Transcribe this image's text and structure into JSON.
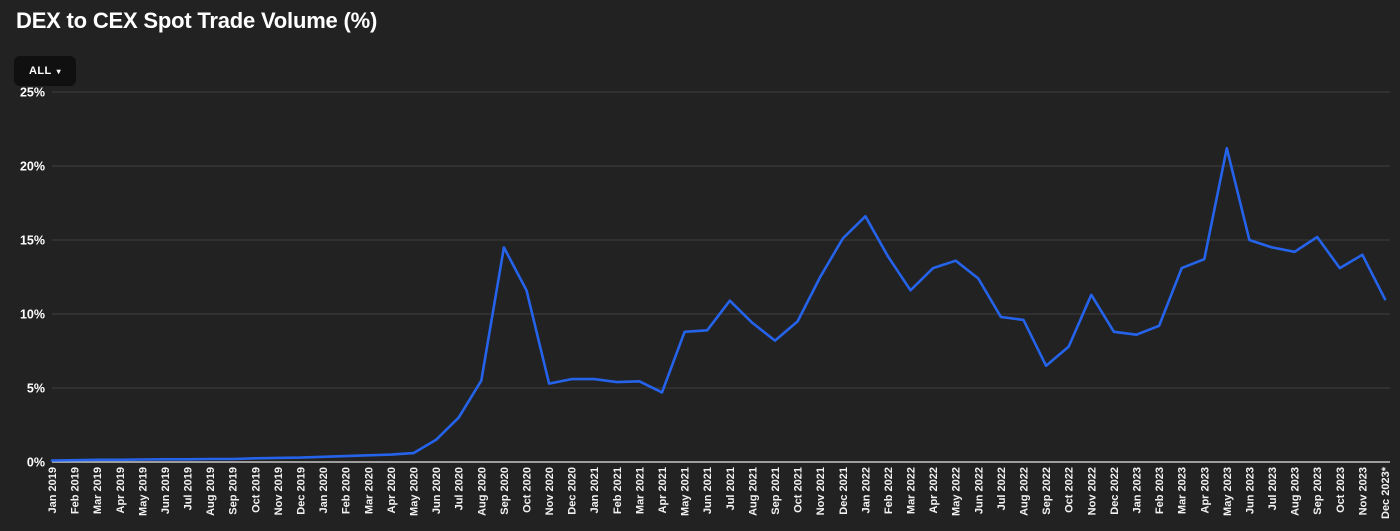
{
  "header": {
    "title": "DEX to CEX Spot Trade Volume (%)"
  },
  "filter": {
    "label": "ALL",
    "caret": "▾"
  },
  "chart_data": {
    "type": "line",
    "title": "DEX to CEX Spot Trade Volume (%)",
    "xlabel": "",
    "ylabel": "",
    "ylim": [
      0,
      25
    ],
    "y_ticks": [
      0,
      5,
      10,
      15,
      20,
      25
    ],
    "y_tick_suffix": "%",
    "grid": true,
    "legend": false,
    "line_color": "#2563eb",
    "grid_color": "#3e3e3e",
    "axis_line_color": "#c6c6c6",
    "label_color": "#ffffff",
    "x_labels": [
      "Jan 2019",
      "Feb 2019",
      "Mar 2019",
      "Apr 2019",
      "May 2019",
      "Jun 2019",
      "Jul 2019",
      "Aug 2019",
      "Sep 2019",
      "Oct 2019",
      "Nov 2019",
      "Dec 2019",
      "Jan 2020",
      "Feb 2020",
      "Mar 2020",
      "Apr 2020",
      "May 2020",
      "Jun 2020",
      "Jul 2020",
      "Aug 2020",
      "Sep 2020",
      "Oct 2020",
      "Nov 2020",
      "Dec 2020",
      "Jan 2021",
      "Feb 2021",
      "Mar 2021",
      "Apr 2021",
      "May 2021",
      "Jun 2021",
      "Jul 2021",
      "Aug 2021",
      "Sep 2021",
      "Oct 2021",
      "Nov 2021",
      "Dec 2021",
      "Jan 2022",
      "Feb 2022",
      "Mar 2022",
      "Apr 2022",
      "May 2022",
      "Jun 2022",
      "Jul 2022",
      "Aug 2022",
      "Sep 2022",
      "Oct 2022",
      "Nov 2022",
      "Dec 2022",
      "Jan 2023",
      "Feb 2023",
      "Mar 2023",
      "Apr 2023",
      "May 2023",
      "Jun 2023",
      "Jul 2023",
      "Aug 2023",
      "Sep 2023",
      "Oct 2023",
      "Nov 2023",
      "Dec 2023*"
    ],
    "values": [
      0.1,
      0.12,
      0.15,
      0.15,
      0.17,
      0.18,
      0.18,
      0.2,
      0.2,
      0.25,
      0.28,
      0.3,
      0.35,
      0.4,
      0.45,
      0.5,
      0.6,
      1.5,
      3.0,
      5.5,
      14.5,
      11.6,
      5.3,
      5.6,
      5.6,
      5.4,
      5.45,
      4.7,
      8.8,
      8.9,
      10.9,
      9.4,
      8.2,
      9.5,
      12.5,
      15.1,
      16.6,
      13.9,
      11.6,
      13.1,
      13.6,
      12.4,
      9.8,
      9.6,
      6.5,
      7.8,
      11.3,
      8.8,
      8.6,
      9.2,
      13.1,
      13.7,
      21.2,
      15.0,
      14.5,
      14.2,
      15.2,
      13.1,
      14.0,
      11.0
    ]
  }
}
